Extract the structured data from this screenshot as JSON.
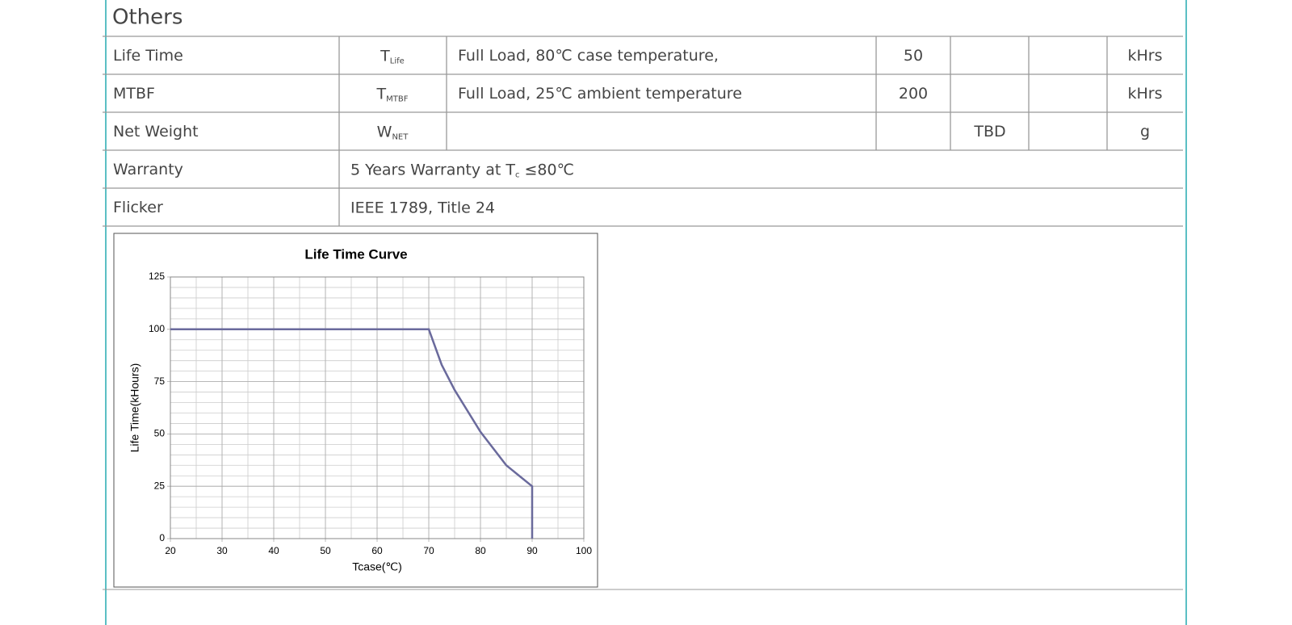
{
  "section_title": "Others",
  "table": {
    "rows": [
      {
        "parameter": "Life Time",
        "symbol": "T",
        "symbol_sub": "Life",
        "condition": "Full Load, 80℃  case temperature,",
        "min": 50,
        "unit": "kHrs"
      },
      {
        "parameter": "MTBF",
        "symbol": "T",
        "symbol_sub": "MTBF",
        "condition": "Full Load, 25℃  ambient temperature",
        "min": 200,
        "unit": "kHrs"
      },
      {
        "parameter": "Net Weight",
        "symbol": "W",
        "symbol_sub": "NET",
        "typ": "TBD",
        "unit": "g"
      },
      {
        "parameter": "Warranty",
        "note": "5 Years Warranty at T",
        "note_sub": "c",
        "note_post": " ≤80℃"
      },
      {
        "parameter": "Flicker",
        "note": "IEEE 1789, Title 24"
      }
    ]
  },
  "chart_data": {
    "type": "line",
    "title": "Life Time Curve",
    "x_label": "Tcase(℃)",
    "y_label": "Life Time(kHours)",
    "x": [
      20,
      70,
      72.5,
      75,
      80,
      85,
      87.5,
      90,
      90
    ],
    "series": [
      {
        "name": "Life Time",
        "color": "#6a6a9c",
        "values": [
          100,
          100,
          83,
          71,
          51,
          35,
          30,
          25,
          0
        ]
      }
    ],
    "xlim": [
      20,
      100
    ],
    "xticks": [
      20,
      30,
      40,
      50,
      60,
      70,
      80,
      90,
      100
    ],
    "ylim": [
      0,
      125
    ],
    "yticks": [
      0,
      25,
      50,
      75,
      100,
      125
    ],
    "grid": true
  }
}
